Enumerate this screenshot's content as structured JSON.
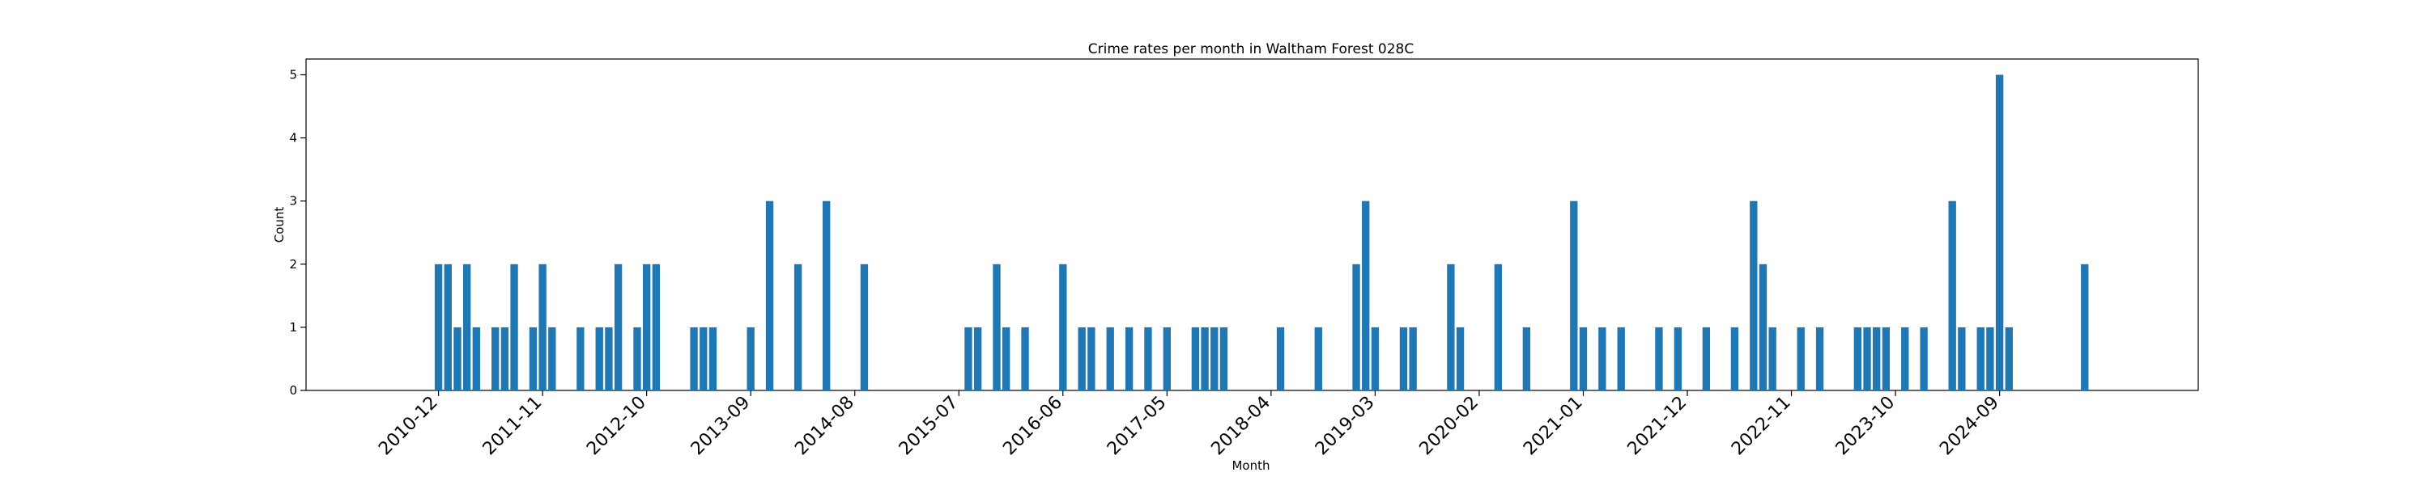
{
  "chart_data": {
    "type": "bar",
    "title": "Crime rates per month in Waltham Forest 028C",
    "xlabel": "Month",
    "ylabel": "Count",
    "ylim": [
      0,
      5.25
    ],
    "yticks": [
      0,
      1,
      2,
      3,
      4,
      5
    ],
    "xlim": [
      "2009-10",
      "2026-06"
    ],
    "xtick_labels": [
      "2010-12",
      "2011-11",
      "2012-10",
      "2013-09",
      "2014-08",
      "2015-07",
      "2016-06",
      "2017-05",
      "2018-04",
      "2019-03",
      "2020-02",
      "2021-01",
      "2021-12",
      "2022-11",
      "2023-10",
      "2024-09"
    ],
    "grid": false,
    "bar_color": "#1f77b4",
    "months": [
      "2010-12",
      "2011-01",
      "2011-02",
      "2011-03",
      "2011-04",
      "2011-06",
      "2011-07",
      "2011-08",
      "2011-10",
      "2011-11",
      "2011-12",
      "2012-03",
      "2012-05",
      "2012-06",
      "2012-07",
      "2012-09",
      "2012-10",
      "2012-11",
      "2013-03",
      "2013-04",
      "2013-05",
      "2013-09",
      "2013-11",
      "2014-02",
      "2014-05",
      "2014-09",
      "2015-08",
      "2015-09",
      "2015-11",
      "2015-12",
      "2016-02",
      "2016-06",
      "2016-08",
      "2016-09",
      "2016-11",
      "2017-01",
      "2017-03",
      "2017-05",
      "2017-08",
      "2017-09",
      "2017-10",
      "2017-11",
      "2018-05",
      "2018-09",
      "2019-01",
      "2019-02",
      "2019-03",
      "2019-06",
      "2019-07",
      "2019-11",
      "2019-12",
      "2020-04",
      "2020-07",
      "2020-12",
      "2021-01",
      "2021-03",
      "2021-05",
      "2021-09",
      "2021-11",
      "2022-02",
      "2022-05",
      "2022-07",
      "2022-08",
      "2022-09",
      "2022-12",
      "2023-02",
      "2023-06",
      "2023-07",
      "2023-08",
      "2023-09",
      "2023-11",
      "2024-01",
      "2024-04",
      "2024-05",
      "2024-07",
      "2024-08",
      "2024-09",
      "2024-10",
      "2025-06"
    ],
    "values": [
      2,
      2,
      1,
      2,
      1,
      1,
      1,
      2,
      1,
      2,
      1,
      1,
      1,
      1,
      2,
      1,
      2,
      2,
      1,
      1,
      1,
      1,
      3,
      2,
      3,
      2,
      1,
      1,
      2,
      1,
      1,
      2,
      1,
      1,
      1,
      1,
      1,
      1,
      1,
      1,
      1,
      1,
      1,
      1,
      2,
      3,
      1,
      1,
      1,
      2,
      1,
      2,
      1,
      3,
      1,
      1,
      1,
      1,
      1,
      1,
      1,
      3,
      2,
      1,
      1,
      1,
      1,
      1,
      1,
      1,
      1,
      1,
      3,
      1,
      1,
      1,
      5,
      1,
      2
    ]
  }
}
